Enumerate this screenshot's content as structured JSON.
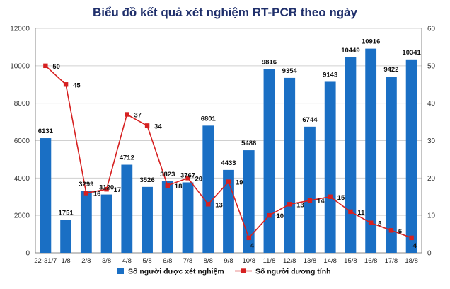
{
  "chart_data": {
    "type": "bar",
    "title": "Biểu đồ kết quả xét nghiệm RT-PCR theo ngày",
    "categories": [
      "22-31/7",
      "1/8",
      "2/8",
      "3/8",
      "4/8",
      "5/8",
      "6/8",
      "7/8",
      "8/8",
      "9/8",
      "10/8",
      "11/8",
      "12/8",
      "13/8",
      "14/8",
      "15/8",
      "16/8",
      "17/8",
      "18/8"
    ],
    "series": [
      {
        "name": "Số người được xét nghiệm",
        "type": "bar",
        "axis": "left",
        "color": "#1a6fc4",
        "values": [
          6131,
          1751,
          3299,
          3120,
          4712,
          3526,
          3823,
          3767,
          6801,
          4433,
          5486,
          9816,
          9354,
          6744,
          9143,
          10449,
          10916,
          9422,
          10341
        ]
      },
      {
        "name": "Số người dương tính",
        "type": "line",
        "axis": "right",
        "color": "#d62020",
        "values": [
          50,
          45,
          16,
          17,
          37,
          34,
          18,
          20,
          13,
          19,
          4,
          10,
          13,
          14,
          15,
          11,
          8,
          6,
          4
        ]
      }
    ],
    "y_left": {
      "min": 0,
      "max": 12000,
      "ticks": [
        0,
        2000,
        4000,
        6000,
        8000,
        10000,
        12000
      ]
    },
    "y_right": {
      "min": 0,
      "max": 60,
      "ticks": [
        0,
        10,
        20,
        30,
        40,
        50,
        60
      ]
    },
    "grid": true,
    "legend": "bottom"
  }
}
